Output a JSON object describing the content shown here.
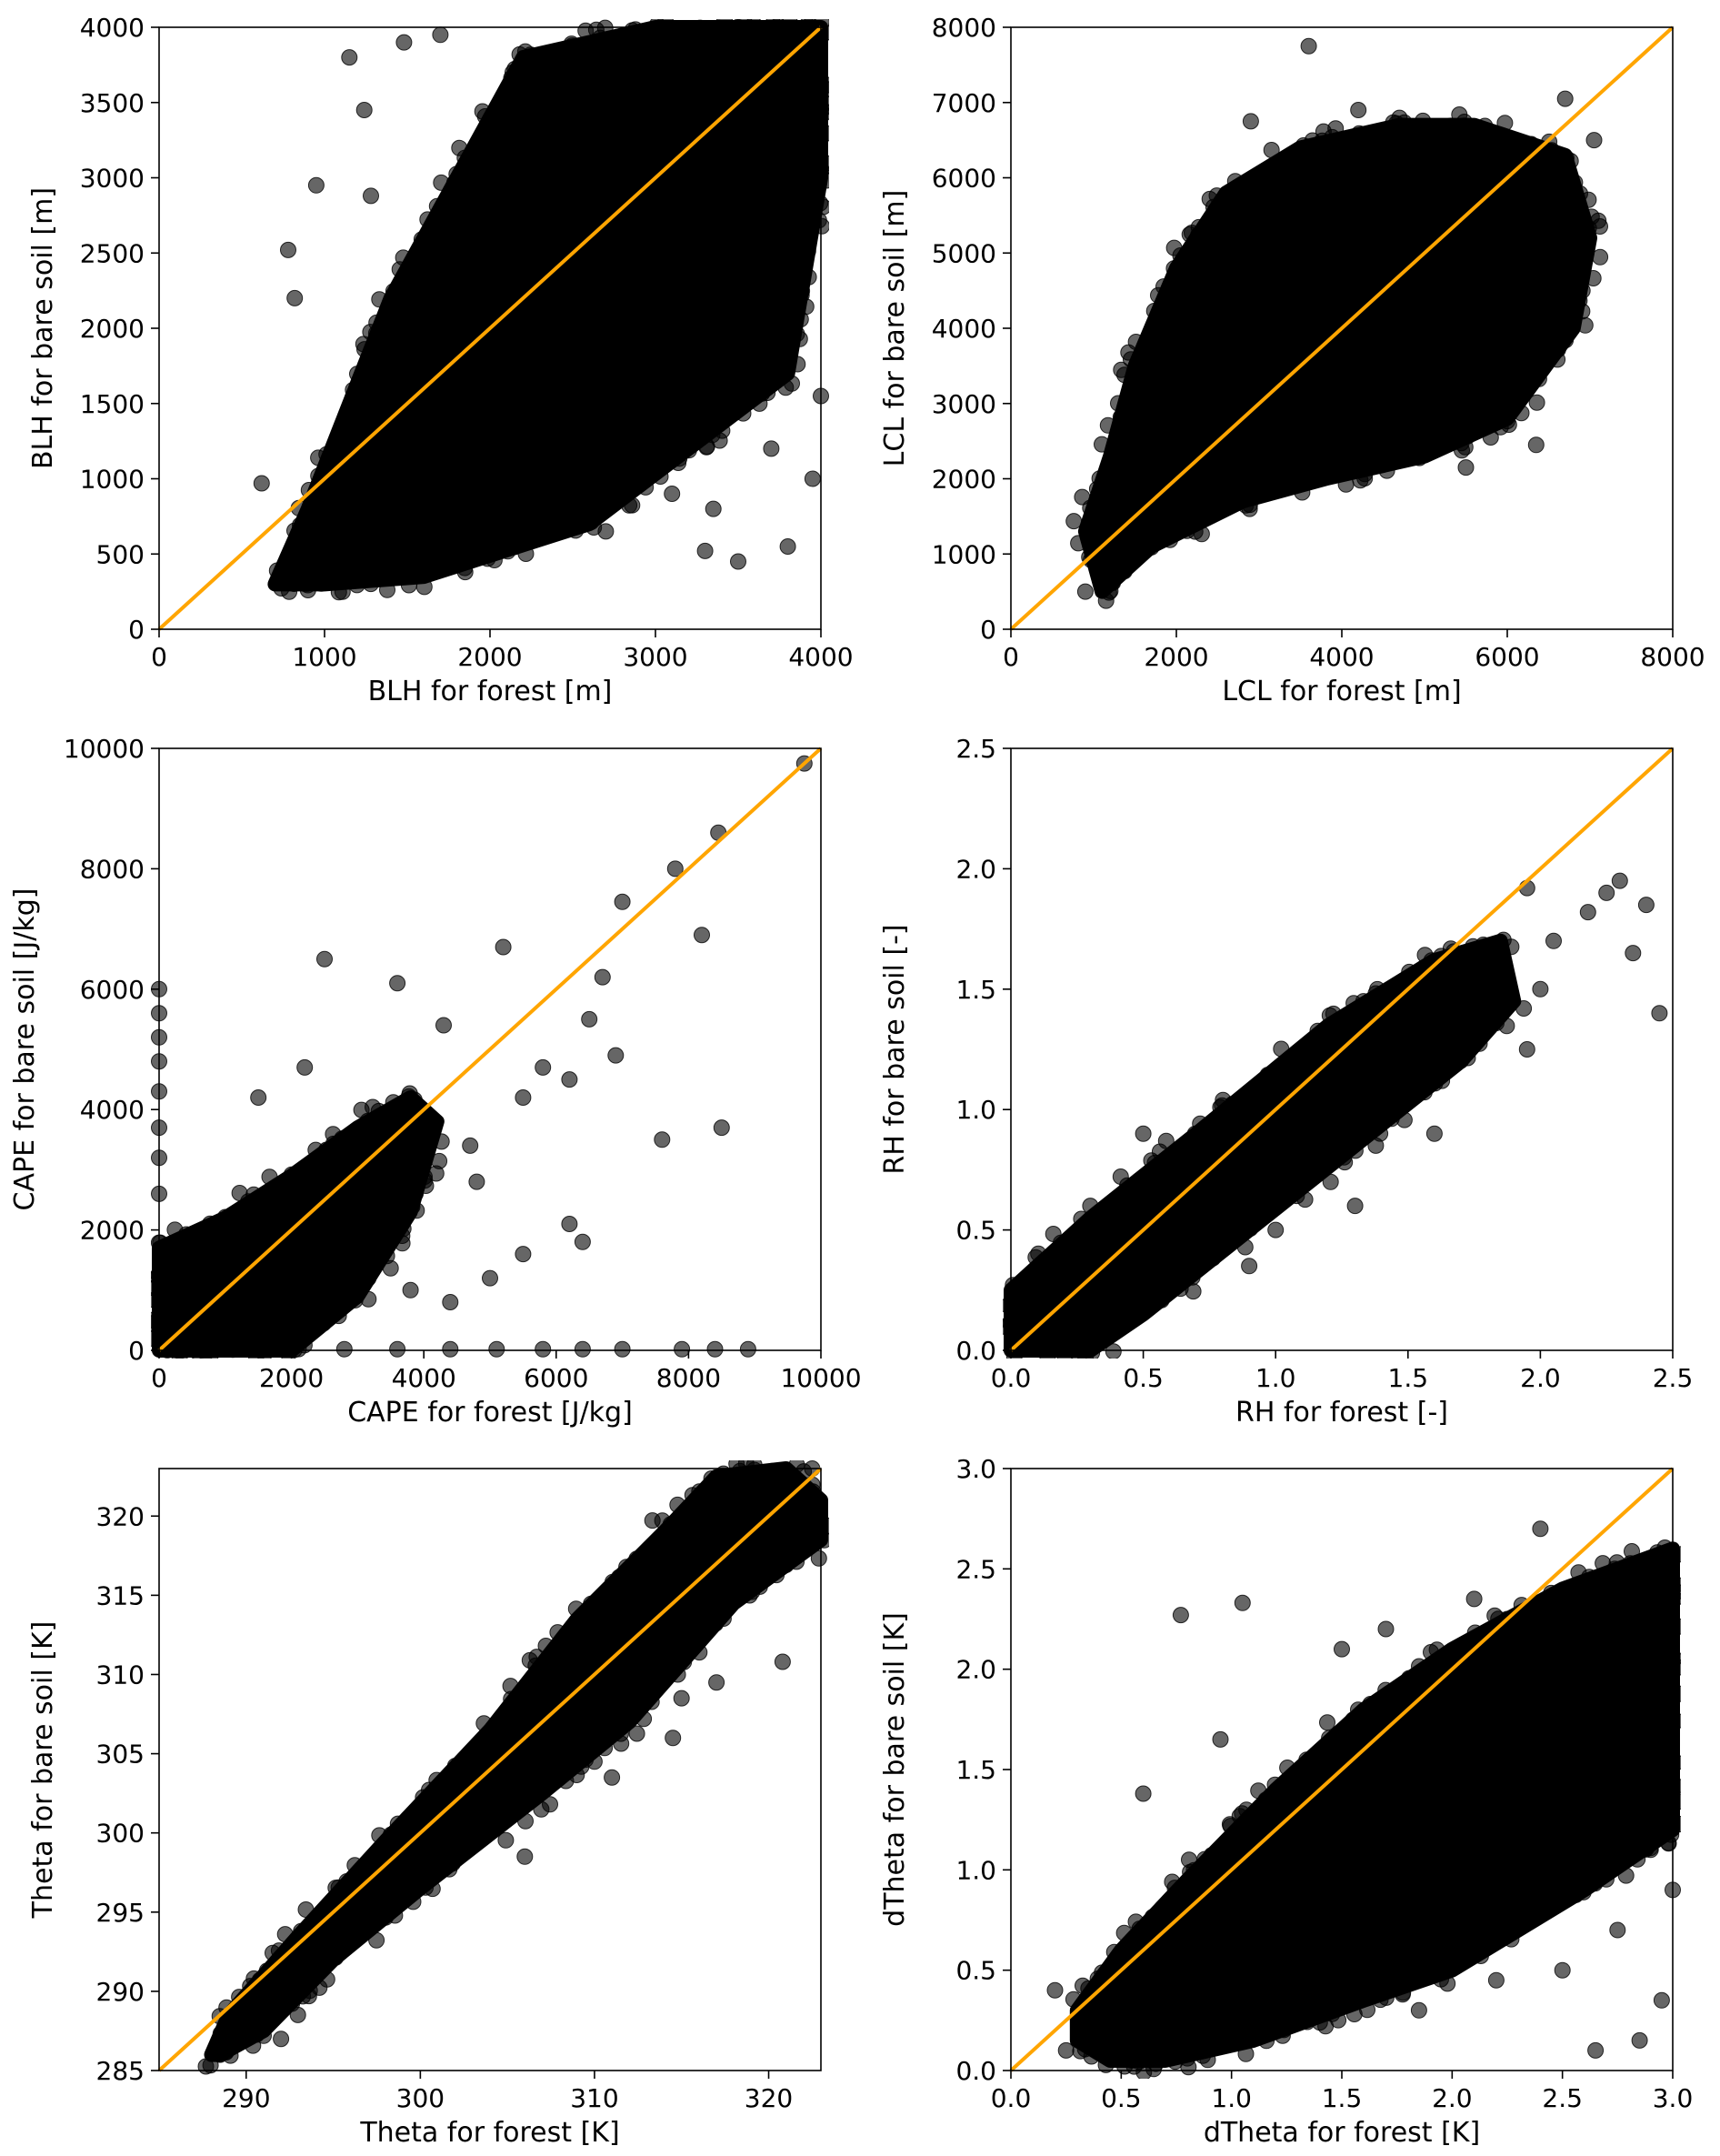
{
  "figure": {
    "background": "#ffffff"
  },
  "style": {
    "point_color": "#000000",
    "point_opacity": 0.6,
    "line_color": "#ffa500"
  },
  "chart_data": [
    {
      "id": "blh",
      "type": "scatter",
      "xlabel": "BLH for forest [m]",
      "ylabel": "BLH for bare soil [m]",
      "xlim": [
        0,
        4000
      ],
      "ylim": [
        0,
        4000
      ],
      "xticks": [
        0,
        1000,
        2000,
        3000,
        4000
      ],
      "xtick_labels": [
        "0",
        "1000",
        "2000",
        "3000",
        "4000"
      ],
      "yticks": [
        0,
        500,
        1000,
        1500,
        2000,
        2500,
        3000,
        3500,
        4000
      ],
      "ytick_labels": [
        "0",
        "500",
        "1000",
        "1500",
        "2000",
        "2500",
        "3000",
        "3500",
        "4000"
      ],
      "reference_line": {
        "from": [
          0,
          0
        ],
        "to": [
          4000,
          4000
        ]
      },
      "cloud": [
        [
          700,
          300
        ],
        [
          900,
          800
        ],
        [
          1400,
          2200
        ],
        [
          2200,
          3800
        ],
        [
          3000,
          4000
        ],
        [
          4000,
          4000
        ],
        [
          4000,
          3000
        ],
        [
          3800,
          1700
        ],
        [
          2600,
          700
        ],
        [
          1600,
          350
        ],
        [
          1000,
          300
        ]
      ],
      "points": [
        [
          620,
          970
        ],
        [
          780,
          2520
        ],
        [
          820,
          2200
        ],
        [
          950,
          2950
        ],
        [
          1150,
          3800
        ],
        [
          1240,
          3450
        ],
        [
          1280,
          2880
        ],
        [
          1480,
          3900
        ],
        [
          1700,
          3950
        ],
        [
          3500,
          450
        ],
        [
          3800,
          550
        ],
        [
          3350,
          800
        ],
        [
          3100,
          900
        ],
        [
          2700,
          650
        ],
        [
          1850,
          380
        ],
        [
          900,
          260
        ],
        [
          3950,
          1000
        ],
        [
          3700,
          1200
        ],
        [
          3300,
          520
        ],
        [
          4000,
          1550
        ]
      ]
    },
    {
      "id": "lcl",
      "type": "scatter",
      "xlabel": "LCL for forest [m]",
      "ylabel": "LCL for bare soil [m]",
      "xlim": [
        0,
        8000
      ],
      "ylim": [
        0,
        8000
      ],
      "xticks": [
        0,
        2000,
        4000,
        6000,
        8000
      ],
      "xtick_labels": [
        "0",
        "2000",
        "4000",
        "6000",
        "8000"
      ],
      "yticks": [
        0,
        1000,
        2000,
        3000,
        4000,
        5000,
        6000,
        7000,
        8000
      ],
      "ytick_labels": [
        "0",
        "1000",
        "2000",
        "3000",
        "4000",
        "5000",
        "6000",
        "7000",
        "8000"
      ],
      "reference_line": {
        "from": [
          0,
          0
        ],
        "to": [
          8000,
          8000
        ]
      },
      "cloud": [
        [
          1000,
          900
        ],
        [
          1100,
          500
        ],
        [
          1700,
          1100
        ],
        [
          2800,
          1700
        ],
        [
          3800,
          2000
        ],
        [
          5000,
          2300
        ],
        [
          6000,
          2800
        ],
        [
          6800,
          4000
        ],
        [
          7000,
          5200
        ],
        [
          6700,
          6300
        ],
        [
          5600,
          6700
        ],
        [
          4700,
          6700
        ],
        [
          3500,
          6400
        ],
        [
          2600,
          5800
        ],
        [
          2000,
          4800
        ],
        [
          1500,
          3500
        ],
        [
          1200,
          2300
        ],
        [
          900,
          1300
        ]
      ],
      "points": [
        [
          3600,
          7750
        ],
        [
          2900,
          6750
        ],
        [
          6700,
          7050
        ],
        [
          7050,
          6500
        ],
        [
          900,
          500
        ],
        [
          1150,
          380
        ],
        [
          5800,
          2550
        ],
        [
          6350,
          2450
        ],
        [
          5500,
          2150
        ],
        [
          4200,
          6900
        ]
      ]
    },
    {
      "id": "cape",
      "type": "scatter",
      "xlabel": "CAPE for forest [J/kg]",
      "ylabel": "CAPE for bare soil [J/kg]",
      "xlim": [
        0,
        10000
      ],
      "ylim": [
        0,
        10000
      ],
      "xticks": [
        0,
        2000,
        4000,
        6000,
        8000,
        10000
      ],
      "xtick_labels": [
        "0",
        "2000",
        "4000",
        "6000",
        "8000",
        "10000"
      ],
      "yticks": [
        0,
        2000,
        4000,
        6000,
        8000,
        10000
      ],
      "ytick_labels": [
        "0",
        "2000",
        "4000",
        "6000",
        "8000",
        "10000"
      ],
      "reference_line": {
        "from": [
          0,
          0
        ],
        "to": [
          10000,
          10000
        ]
      },
      "cloud": [
        [
          0,
          0
        ],
        [
          0,
          1700
        ],
        [
          1000,
          2200
        ],
        [
          2000,
          2900
        ],
        [
          3000,
          3700
        ],
        [
          3800,
          4200
        ],
        [
          4200,
          3800
        ],
        [
          3800,
          2300
        ],
        [
          3000,
          900
        ],
        [
          2000,
          0
        ]
      ],
      "points": [
        [
          9750,
          9750
        ],
        [
          8450,
          8600
        ],
        [
          7800,
          8000
        ],
        [
          8200,
          6900
        ],
        [
          7000,
          7450
        ],
        [
          6700,
          6200
        ],
        [
          6900,
          4900
        ],
        [
          6500,
          5500
        ],
        [
          5800,
          4700
        ],
        [
          5200,
          6700
        ],
        [
          4300,
          5400
        ],
        [
          3600,
          6100
        ],
        [
          2500,
          6500
        ],
        [
          2200,
          4700
        ],
        [
          1500,
          4200
        ],
        [
          4700,
          3400
        ],
        [
          5500,
          4200
        ],
        [
          6200,
          4500
        ],
        [
          7600,
          3500
        ],
        [
          8500,
          3700
        ],
        [
          6200,
          2100
        ],
        [
          6400,
          1800
        ],
        [
          5500,
          1600
        ],
        [
          5000,
          1200
        ],
        [
          4400,
          800
        ],
        [
          4800,
          2800
        ],
        [
          3800,
          1000
        ],
        [
          0,
          6000
        ],
        [
          0,
          5600
        ],
        [
          0,
          5200
        ],
        [
          0,
          4800
        ],
        [
          0,
          4300
        ],
        [
          0,
          3700
        ],
        [
          0,
          3200
        ],
        [
          0,
          2600
        ],
        [
          2800,
          20
        ],
        [
          3600,
          20
        ],
        [
          4400,
          20
        ],
        [
          5100,
          20
        ],
        [
          5800,
          20
        ],
        [
          6400,
          20
        ],
        [
          7000,
          20
        ],
        [
          7900,
          20
        ],
        [
          8400,
          20
        ],
        [
          8900,
          20
        ]
      ]
    },
    {
      "id": "rh",
      "type": "scatter",
      "xlabel": "RH for forest [-]",
      "ylabel": "RH for bare soil [-]",
      "xlim": [
        0,
        2.5
      ],
      "ylim": [
        0,
        2.5
      ],
      "xticks": [
        0,
        0.5,
        1.0,
        1.5,
        2.0,
        2.5
      ],
      "xtick_labels": [
        "0.0",
        "0.5",
        "1.0",
        "1.5",
        "2.0",
        "2.5"
      ],
      "yticks": [
        0,
        0.5,
        1.0,
        1.5,
        2.0,
        2.5
      ],
      "ytick_labels": [
        "0.0",
        "0.5",
        "1.0",
        "1.5",
        "2.0",
        "2.5"
      ],
      "reference_line": {
        "from": [
          0,
          0
        ],
        "to": [
          2.5,
          2.5
        ]
      },
      "cloud": [
        [
          0,
          0
        ],
        [
          0,
          0.25
        ],
        [
          0.3,
          0.55
        ],
        [
          0.7,
          0.9
        ],
        [
          1.2,
          1.35
        ],
        [
          1.6,
          1.62
        ],
        [
          1.85,
          1.7
        ],
        [
          1.9,
          1.45
        ],
        [
          1.7,
          1.2
        ],
        [
          1.3,
          0.85
        ],
        [
          0.9,
          0.5
        ],
        [
          0.5,
          0.15
        ],
        [
          0.3,
          0
        ]
      ],
      "points": [
        [
          2.3,
          1.95
        ],
        [
          2.25,
          1.9
        ],
        [
          2.18,
          1.82
        ],
        [
          2.4,
          1.85
        ],
        [
          2.45,
          1.4
        ],
        [
          2.35,
          1.65
        ],
        [
          1.95,
          1.92
        ],
        [
          2.0,
          1.5
        ],
        [
          1.95,
          1.25
        ],
        [
          1.6,
          0.9
        ],
        [
          1.3,
          0.6
        ],
        [
          1.0,
          0.5
        ],
        [
          0.9,
          0.35
        ],
        [
          0.5,
          0.9
        ],
        [
          0.3,
          0.6
        ],
        [
          1.75,
          1.3
        ],
        [
          2.05,
          1.7
        ]
      ]
    },
    {
      "id": "theta",
      "type": "scatter",
      "xlabel": "Theta for forest [K]",
      "ylabel": "Theta for bare soil [K]",
      "xlim": [
        285,
        323
      ],
      "ylim": [
        285,
        323
      ],
      "xticks": [
        290,
        300,
        310,
        320
      ],
      "xtick_labels": [
        "290",
        "300",
        "310",
        "320"
      ],
      "yticks": [
        285,
        290,
        295,
        300,
        305,
        310,
        315,
        320
      ],
      "ytick_labels": [
        "285",
        "290",
        "295",
        "300",
        "305",
        "310",
        "315",
        "320"
      ],
      "reference_line": {
        "from": [
          285,
          285
        ],
        "to": [
          323,
          323
        ]
      },
      "cloud": [
        [
          288,
          286
        ],
        [
          289,
          288.5
        ],
        [
          293,
          293.5
        ],
        [
          298,
          299.5
        ],
        [
          304,
          306.5
        ],
        [
          309,
          313.5
        ],
        [
          314,
          319
        ],
        [
          317,
          322.5
        ],
        [
          321,
          323
        ],
        [
          323,
          321
        ],
        [
          323,
          318.5
        ],
        [
          318,
          314.5
        ],
        [
          312,
          307
        ],
        [
          307,
          302.5
        ],
        [
          300,
          296.5
        ],
        [
          295,
          292
        ],
        [
          291,
          287.5
        ],
        [
          288.5,
          286
        ]
      ],
      "points": [
        [
          320.8,
          310.8
        ],
        [
          316,
          312.5
        ],
        [
          315,
          308.5
        ],
        [
          317,
          309.5
        ],
        [
          314.5,
          306
        ],
        [
          311,
          303.5
        ],
        [
          310,
          304.5
        ],
        [
          306,
          298.5
        ],
        [
          292,
          287
        ],
        [
          288.5,
          286
        ],
        [
          297,
          296
        ],
        [
          303,
          302
        ],
        [
          322.5,
          323
        ]
      ]
    },
    {
      "id": "dtheta",
      "type": "scatter",
      "xlabel": "dTheta for forest [K]",
      "ylabel": "dTheta for bare soil [K]",
      "xlim": [
        0,
        3.0
      ],
      "ylim": [
        0,
        3.0
      ],
      "xticks": [
        0,
        0.5,
        1.0,
        1.5,
        2.0,
        2.5,
        3.0
      ],
      "xtick_labels": [
        "0.0",
        "0.5",
        "1.0",
        "1.5",
        "2.0",
        "2.5",
        "3.0"
      ],
      "yticks": [
        0,
        0.5,
        1.0,
        1.5,
        2.0,
        2.5,
        3.0
      ],
      "ytick_labels": [
        "0.0",
        "0.5",
        "1.0",
        "1.5",
        "2.0",
        "2.5",
        "3.0"
      ],
      "reference_line": {
        "from": [
          0,
          0
        ],
        "to": [
          3.0,
          3.0
        ]
      },
      "cloud": [
        [
          0.3,
          0.3
        ],
        [
          0.5,
          0.6
        ],
        [
          0.8,
          0.95
        ],
        [
          1.2,
          1.4
        ],
        [
          1.6,
          1.8
        ],
        [
          2.0,
          2.1
        ],
        [
          2.5,
          2.4
        ],
        [
          3.0,
          2.6
        ],
        [
          3.0,
          1.2
        ],
        [
          2.6,
          0.9
        ],
        [
          2.0,
          0.5
        ],
        [
          1.6,
          0.35
        ],
        [
          1.1,
          0.15
        ],
        [
          0.7,
          0.05
        ],
        [
          0.45,
          0.05
        ],
        [
          0.3,
          0.15
        ]
      ],
      "points": [
        [
          0.77,
          2.27
        ],
        [
          1.05,
          2.33
        ],
        [
          2.4,
          2.7
        ],
        [
          0.6,
          1.38
        ],
        [
          0.95,
          1.65
        ],
        [
          2.65,
          0.1
        ],
        [
          2.85,
          0.15
        ],
        [
          2.95,
          0.35
        ],
        [
          2.5,
          0.5
        ],
        [
          2.75,
          0.7
        ],
        [
          2.2,
          0.45
        ],
        [
          1.85,
          0.3
        ],
        [
          0.4,
          0.42
        ],
        [
          0.2,
          0.4
        ],
        [
          0.25,
          0.1
        ],
        [
          0.55,
          0.05
        ],
        [
          1.5,
          2.1
        ],
        [
          1.7,
          2.2
        ],
        [
          2.1,
          2.35
        ],
        [
          2.25,
          2.25
        ],
        [
          3.0,
          0.9
        ],
        [
          2.9,
          1.1
        ]
      ]
    }
  ]
}
